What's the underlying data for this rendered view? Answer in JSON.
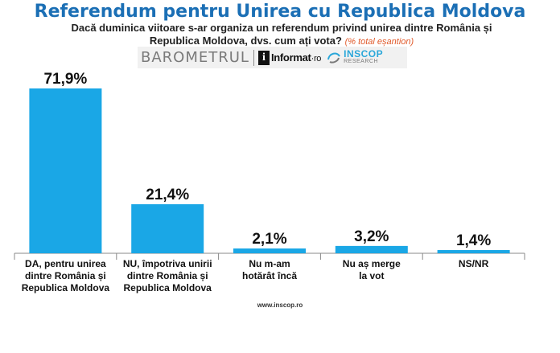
{
  "header": {
    "title": "Referendum pentru Unirea cu Republica Moldova",
    "subtitle": "Dacă duminica viitoare s-ar organiza un referendum privind unirea dintre România și Republica Moldova, dvs. cum ați vota?",
    "subtitle_note": "(% total eșantion)"
  },
  "logos": {
    "barometrul": "BAROMETRUL",
    "informat_main": "Informat",
    "informat_suffix": "ro",
    "inscop_name": "INSCOP",
    "inscop_sub": "RESEARCH"
  },
  "colors": {
    "title": "#1b6fb5",
    "bar": "#1aa7e6",
    "note": "#e05a2b",
    "axis": "#888888"
  },
  "chart_data": {
    "type": "bar",
    "title": "Referendum pentru Unirea cu Republica Moldova",
    "categories": [
      "DA, pentru unirea dintre România și Republica Moldova",
      "NU, împotriva unirii dintre România și Republica Moldova",
      "Nu m-am hotărât încă",
      "Nu aș merge la vot",
      "NS/NR"
    ],
    "category_lines": [
      [
        "DA, pentru unirea",
        "dintre România și",
        "Republica Moldova"
      ],
      [
        "NU, împotriva unirii",
        "dintre România și",
        "Republica Moldova"
      ],
      [
        "Nu m-am",
        "hotărât încă"
      ],
      [
        "Nu aș merge",
        "la vot"
      ],
      [
        "NS/NR"
      ]
    ],
    "values": [
      71.9,
      21.4,
      2.1,
      3.2,
      1.4
    ],
    "value_labels": [
      "71,9%",
      "21,4%",
      "2,1%",
      "3,2%",
      "1,4%"
    ],
    "unit": "%",
    "ylim": [
      0,
      100
    ],
    "grid": false,
    "legend": "none"
  },
  "footer": {
    "source": "www.inscop.ro"
  }
}
